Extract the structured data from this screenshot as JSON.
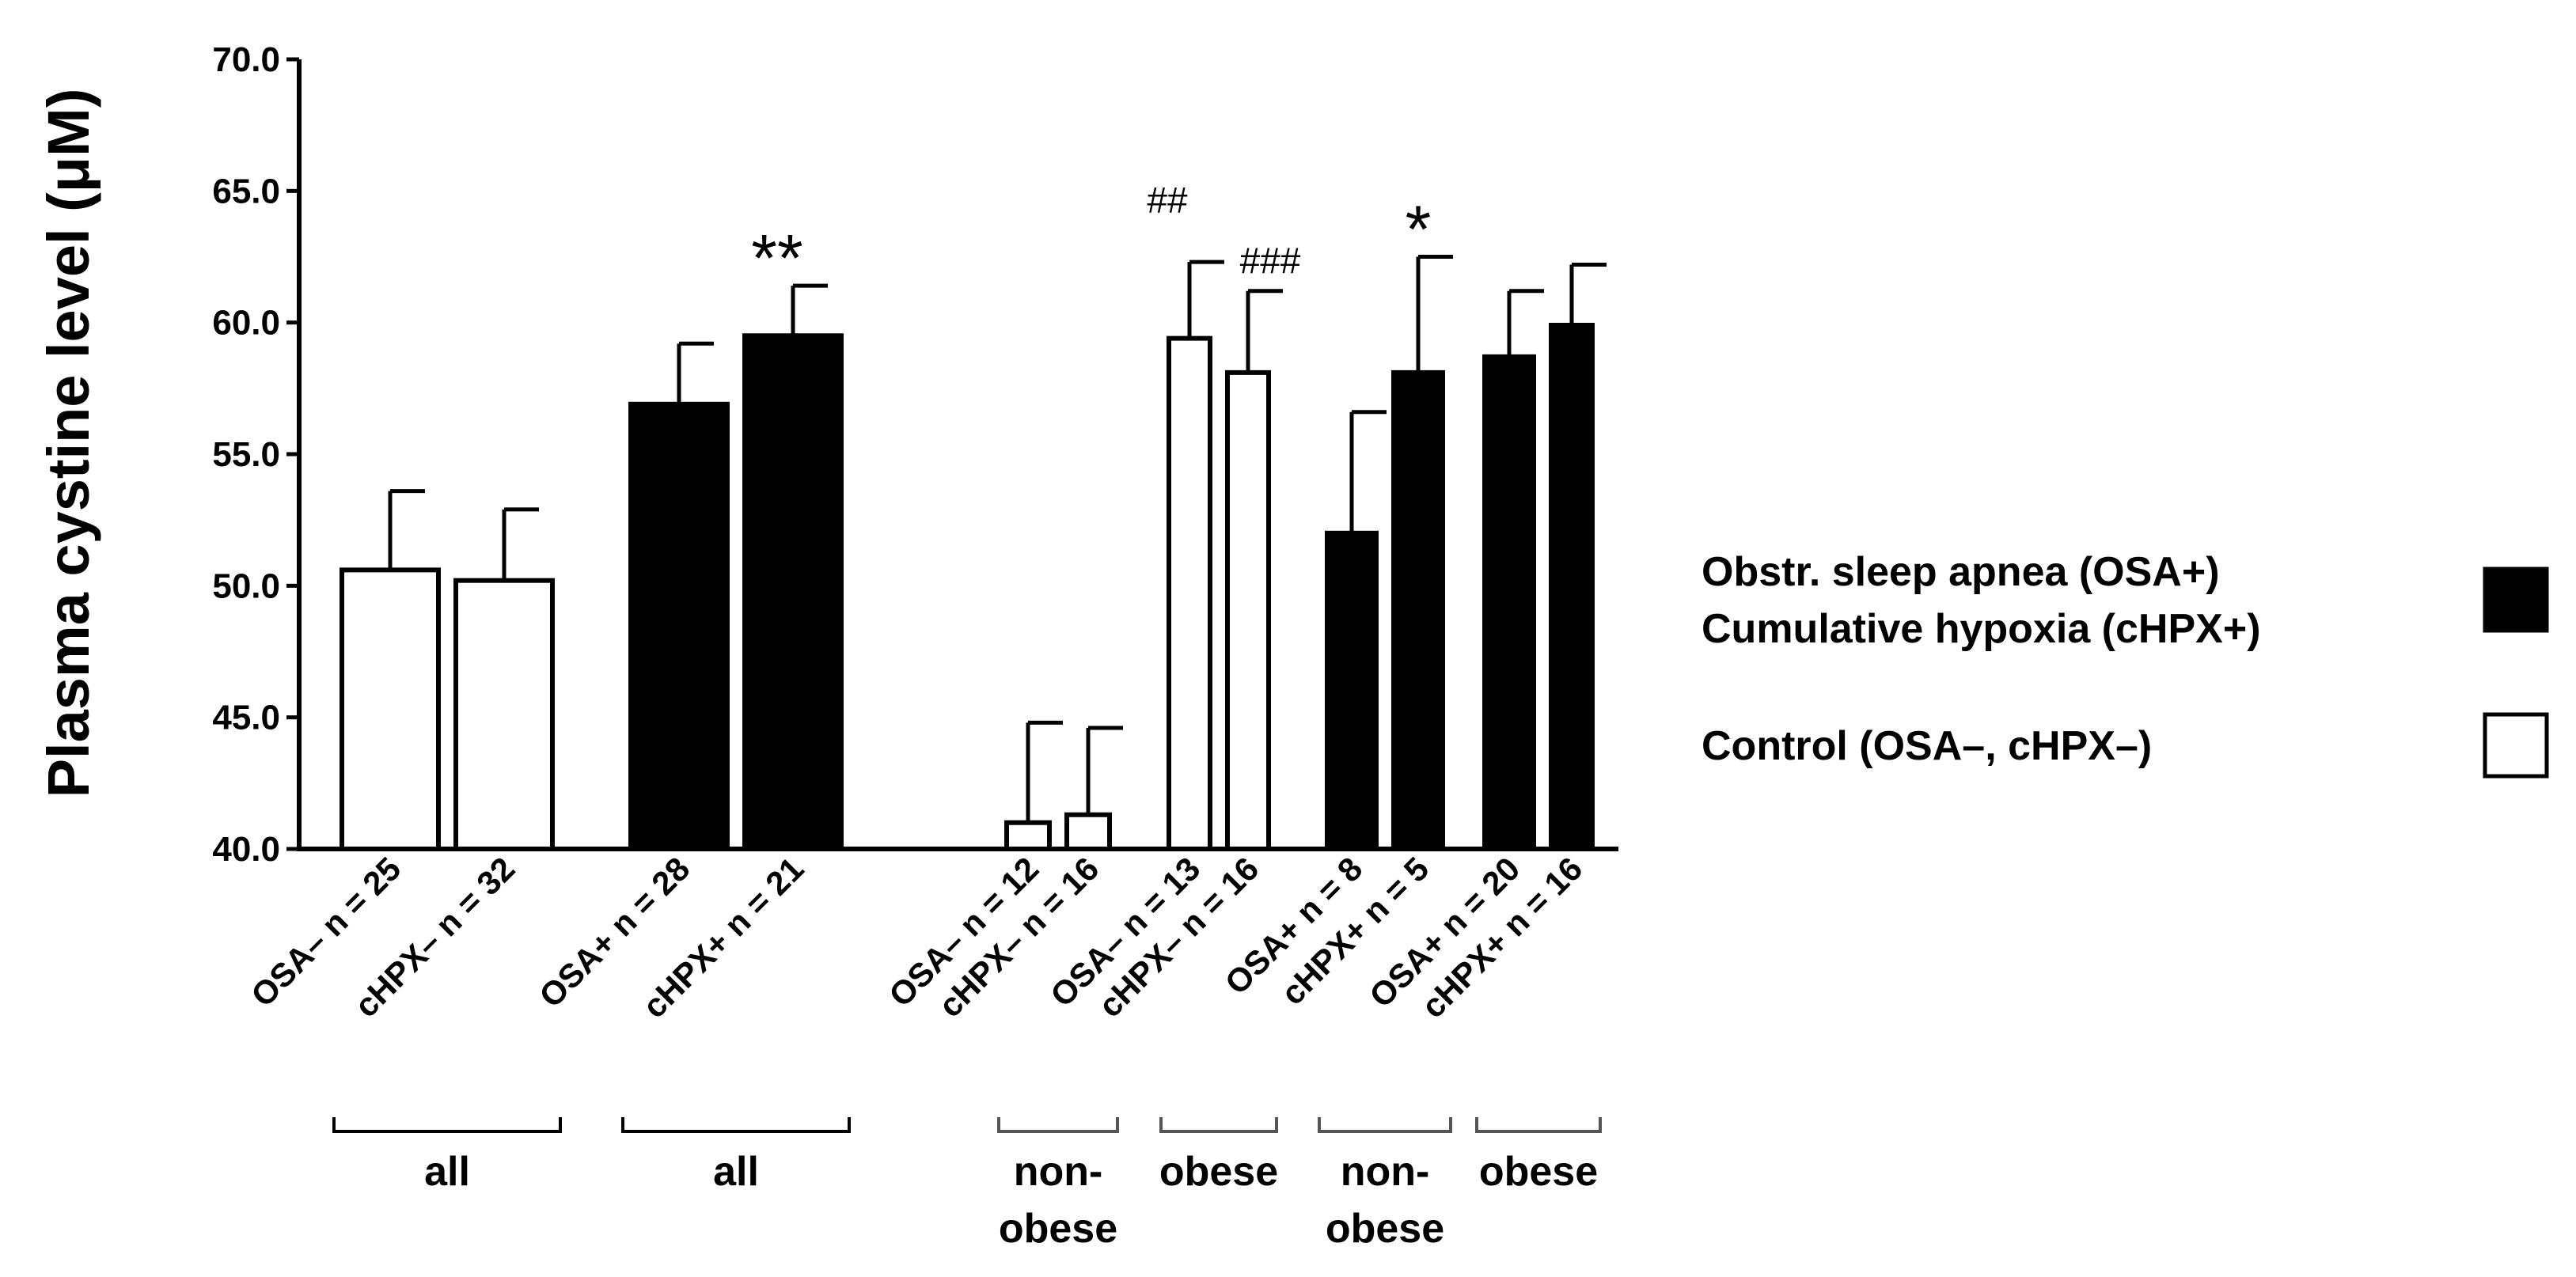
{
  "chart_data": {
    "type": "bar",
    "title": "",
    "xlabel": "",
    "ylabel": "Plasma cystine level (μM)",
    "ylim": [
      40,
      70
    ],
    "yticks": [
      "40.0",
      "45.0",
      "50.0",
      "55.0",
      "60.0",
      "65.0",
      "70.0"
    ],
    "bars": [
      {
        "label": "OSA–  n = 25",
        "value": 50.6,
        "error": 3.0,
        "fill": "white",
        "sig": ""
      },
      {
        "label": "cHPX–  n = 32",
        "value": 50.2,
        "error": 2.7,
        "fill": "white",
        "sig": ""
      },
      {
        "label": "OSA+  n = 28",
        "value": 56.9,
        "error": 2.3,
        "fill": "black",
        "sig": ""
      },
      {
        "label": "cHPX+  n = 21",
        "value": 59.5,
        "error": 1.9,
        "fill": "black",
        "sig": "**"
      },
      {
        "label": "OSA–  n = 12",
        "value": 41.0,
        "error": 3.8,
        "fill": "white",
        "sig": ""
      },
      {
        "label": "cHPX–  n = 16",
        "value": 41.3,
        "error": 3.3,
        "fill": "white",
        "sig": ""
      },
      {
        "label": "OSA–  n = 13",
        "value": 59.4,
        "error": 2.9,
        "fill": "white",
        "sig": "##"
      },
      {
        "label": "cHPX–  n = 16",
        "value": 58.1,
        "error": 3.1,
        "fill": "white",
        "sig": "###"
      },
      {
        "label": "OSA+  n = 8",
        "value": 52.0,
        "error": 4.6,
        "fill": "black",
        "sig": ""
      },
      {
        "label": "cHPX+  n = 5",
        "value": 58.1,
        "error": 4.4,
        "fill": "black",
        "sig": "*"
      },
      {
        "label": "OSA+  n = 20",
        "value": 58.7,
        "error": 2.5,
        "fill": "black",
        "sig": ""
      },
      {
        "label": "cHPX+  n = 16",
        "value": 59.9,
        "error": 2.3,
        "fill": "black",
        "sig": ""
      }
    ],
    "groups": [
      {
        "label": "all",
        "bars": [
          0,
          1
        ]
      },
      {
        "label": "all",
        "bars": [
          2,
          3
        ]
      },
      {
        "label": "non-\nobese",
        "bars": [
          4,
          5
        ]
      },
      {
        "label": "obese",
        "bars": [
          6,
          7
        ]
      },
      {
        "label": "non-\nobese",
        "bars": [
          8,
          9
        ]
      },
      {
        "label": "obese",
        "bars": [
          10,
          11
        ]
      }
    ],
    "legend": {
      "position": "right",
      "entries": [
        {
          "lines": [
            "Obstr.  sleep apnea   (OSA+)",
            "Cumulative hypoxia (cHPX+)"
          ],
          "fill": "black"
        },
        {
          "lines": [
            "Control (OSA–,  cHPX–)"
          ],
          "fill": "white"
        }
      ]
    },
    "colors": {
      "ink": "#000000",
      "bracket": "#555555"
    }
  }
}
